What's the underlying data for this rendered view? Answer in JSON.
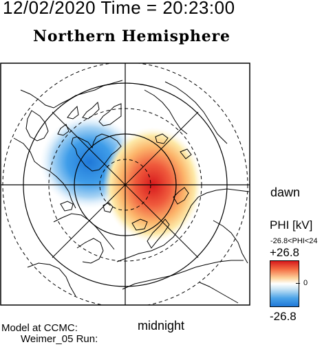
{
  "header": {
    "timestamp": "12/02/2020 Time = 20:23:00",
    "hemisphere": "Northern Hemisphere"
  },
  "map": {
    "dawn_label": "dawn",
    "midnight_label": "midnight",
    "potential_max_color": "#d7191c",
    "potential_min_color": "#1f78d8",
    "coastline_color": "#000000",
    "circle_color": "#000000"
  },
  "footer": {
    "model_line1": "Model at CCMC:",
    "model_line2": "Weimer_05 Run:"
  },
  "colorbar": {
    "title": "PHI [kV]",
    "range_text": "-26.8<PHI<24",
    "max_label": "+26.8",
    "mid_label": "0",
    "min_label": "-26.8"
  }
}
